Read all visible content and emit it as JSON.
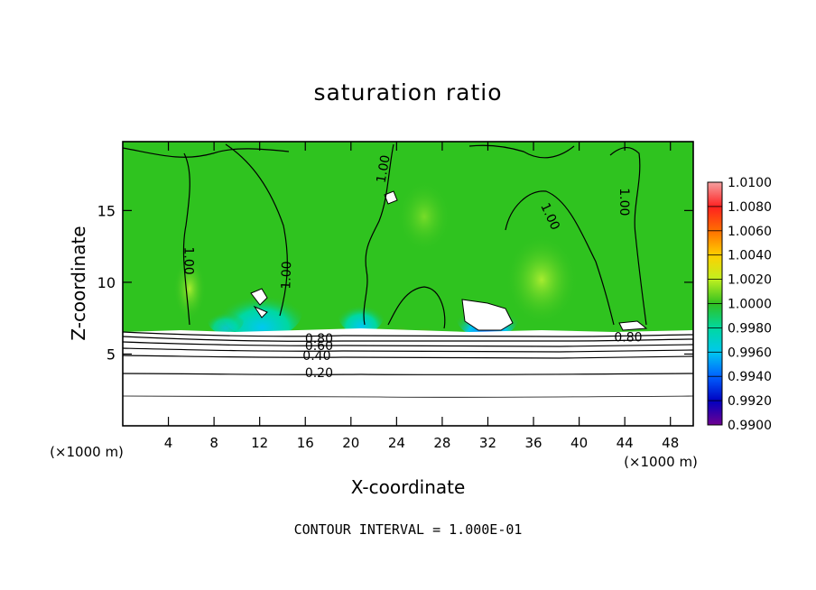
{
  "chart_data": {
    "type": "heatmap",
    "title": "saturation ratio",
    "xlabel": "X-coordinate",
    "ylabel": "Z-coordinate",
    "x_unit_left": "(×1000 m)",
    "x_unit_right": "(×1000 m)",
    "xlim": [
      0,
      50
    ],
    "ylim": [
      0,
      19.8
    ],
    "x_ticks": [
      4,
      8,
      12,
      16,
      20,
      24,
      28,
      32,
      36,
      40,
      44,
      48
    ],
    "y_ticks": [
      5,
      10,
      15
    ],
    "colorbar": {
      "levels": [
        "1.0100",
        "1.0080",
        "1.0060",
        "1.0040",
        "1.0020",
        "1.0000",
        "0.9980",
        "0.9960",
        "0.9940",
        "0.9920",
        "0.9900"
      ],
      "colors": [
        "#f4a0a0",
        "#ff2020",
        "#ff7000",
        "#ffd000",
        "#c0f020",
        "#30c020",
        "#00d8a0",
        "#00c8f0",
        "#0060ff",
        "#0000c0",
        "#700090"
      ]
    },
    "contour_labels": [
      {
        "text": "1.00",
        "x": 5.8,
        "z": 11.5,
        "rot": 90
      },
      {
        "text": "1.00",
        "x": 14.3,
        "z": 10.5,
        "rot": -88
      },
      {
        "text": "1.00",
        "x": 22.8,
        "z": 17.9,
        "rot": -80
      },
      {
        "text": "1.00",
        "x": 37.5,
        "z": 14.6,
        "rot": 65
      },
      {
        "text": "1.00",
        "x": 44.0,
        "z": 15.6,
        "rot": 90
      },
      {
        "text": "0.80",
        "x": 44.3,
        "z": 6.2,
        "rot": 0
      },
      {
        "text": "0.80",
        "x": 17.2,
        "z": 6.1,
        "rot": 0
      },
      {
        "text": "0.60",
        "x": 17.2,
        "z": 5.6,
        "rot": 0
      },
      {
        "text": "0.40",
        "x": 17.0,
        "z": 4.9,
        "rot": 0
      },
      {
        "text": "0.20",
        "x": 17.2,
        "z": 3.7,
        "rot": 0
      }
    ],
    "contour_interval_text": "CONTOUR INTERVAL = 1.000E-01"
  }
}
